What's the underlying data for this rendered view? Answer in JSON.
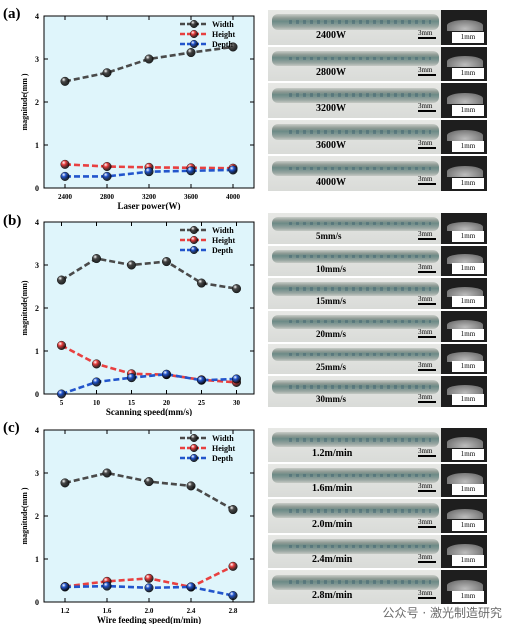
{
  "panels": [
    "(a)",
    "(b)",
    "(c)"
  ],
  "legend": {
    "width": "Width",
    "height": "Height",
    "depth": "Depth"
  },
  "colors": {
    "width": "#4a4a4a",
    "height": "#e84040",
    "depth": "#2255cc",
    "plot_bg": "#dff5fb"
  },
  "chart_data": [
    {
      "type": "line",
      "xlabel": "Laser power(W)",
      "ylabel": "magnitude(mm )",
      "x": [
        2400,
        2800,
        3200,
        3600,
        4000
      ],
      "xticks": [
        "2400",
        "2800",
        "3200",
        "3600",
        "4000"
      ],
      "xlim": [
        2200,
        4200
      ],
      "ylim": [
        0,
        4
      ],
      "yticks": [
        "0",
        "1",
        "2",
        "3",
        "4"
      ],
      "legend_position": "top-right",
      "series": [
        {
          "name": "Width",
          "values": [
            2.48,
            2.68,
            3.0,
            3.15,
            3.28
          ]
        },
        {
          "name": "Height",
          "values": [
            0.55,
            0.5,
            0.48,
            0.47,
            0.46
          ]
        },
        {
          "name": "Depth",
          "values": [
            0.27,
            0.27,
            0.38,
            0.4,
            0.42
          ]
        }
      ]
    },
    {
      "type": "line",
      "xlabel": "Scanning speed(mm/s)",
      "ylabel": "magnitude(mm)",
      "x": [
        5,
        10,
        15,
        20,
        25,
        30
      ],
      "xticks": [
        "5",
        "10",
        "15",
        "20",
        "25",
        "30"
      ],
      "xlim": [
        2.5,
        32.5
      ],
      "ylim": [
        0,
        4
      ],
      "yticks": [
        "0",
        "1",
        "2",
        "3",
        "4"
      ],
      "legend_position": "top-right",
      "series": [
        {
          "name": "Width",
          "values": [
            2.65,
            3.15,
            3.0,
            3.08,
            2.58,
            2.45
          ]
        },
        {
          "name": "Height",
          "values": [
            1.13,
            0.7,
            0.47,
            0.45,
            0.33,
            0.27
          ]
        },
        {
          "name": "Depth",
          "values": [
            0.0,
            0.28,
            0.38,
            0.46,
            0.32,
            0.35
          ]
        }
      ]
    },
    {
      "type": "line",
      "xlabel": "Wire feeding speed(m/min)",
      "ylabel": "magnitude(mm )",
      "x": [
        1.2,
        1.6,
        2.0,
        2.4,
        2.8
      ],
      "xticks": [
        "1.2",
        "1.6",
        "2.0",
        "2.4",
        "2.8"
      ],
      "xlim": [
        1.0,
        3.0
      ],
      "ylim": [
        0,
        4
      ],
      "yticks": [
        "0",
        "1",
        "2",
        "3",
        "4"
      ],
      "legend_position": "top-right",
      "series": [
        {
          "name": "Width",
          "values": [
            2.77,
            3.0,
            2.8,
            2.7,
            2.15
          ]
        },
        {
          "name": "Height",
          "values": [
            0.36,
            0.48,
            0.55,
            0.35,
            0.83
          ]
        },
        {
          "name": "Depth",
          "values": [
            0.35,
            0.37,
            0.33,
            0.35,
            0.15
          ]
        }
      ]
    }
  ],
  "photos": [
    {
      "labels": [
        "2400W",
        "2800W",
        "3200W",
        "3600W",
        "4000W"
      ],
      "scale_bead": "3mm",
      "scale_section": "1mm"
    },
    {
      "labels": [
        "5mm/s",
        "10mm/s",
        "15mm/s",
        "20mm/s",
        "25mm/s",
        "30mm/s"
      ],
      "scale_bead": "3mm",
      "scale_section": "1mm"
    },
    {
      "labels": [
        "1.2m/min",
        "1.6m/min",
        "2.0m/min",
        "2.4m/min",
        "2.8m/min"
      ],
      "scale_bead": "3mm",
      "scale_section": "1mm"
    }
  ],
  "watermark": "公众号 · 激光制造研究"
}
